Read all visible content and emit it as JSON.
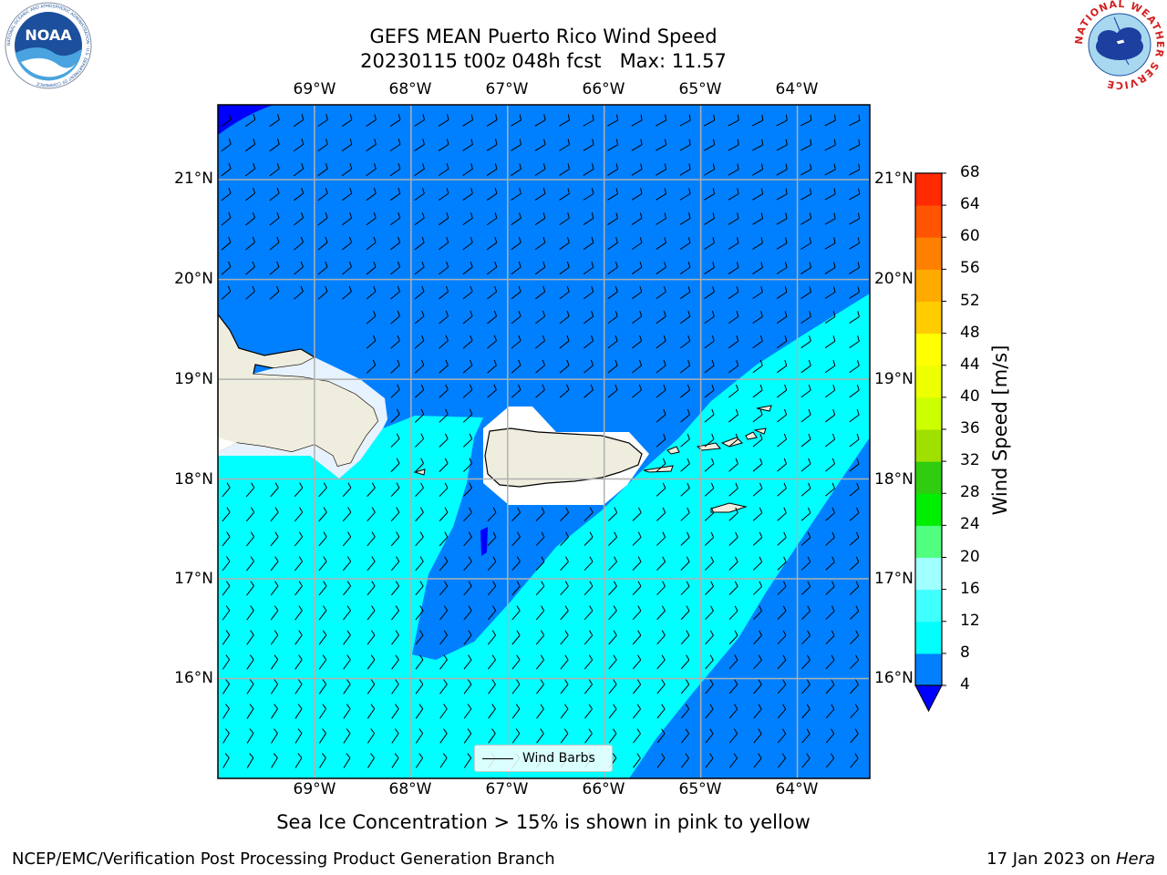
{
  "title_line1": "GEFS MEAN Puerto Rico Wind Speed",
  "title_line2": "20230115 t00z 048h fcst   Max: 11.57",
  "subtitle": "Sea Ice Concentration > 15% is shown in pink to yellow",
  "footer_left": "NCEP/EMC/Verification Post Processing Product Generation Branch",
  "footer_right_text": "17 Jan 2023 on ",
  "footer_right_host": "Hera",
  "noaa_logo_text": "NOAA",
  "noaa_ring_text": "NATIONAL OCEANIC AND ATMOSPHERIC ADMINISTRATION · U.S. DEPARTMENT OF COMMERCE",
  "nws_ring_text": "NATIONAL WEATHER SERVICE",
  "legend_label": "Wind Barbs",
  "map": {
    "lon_labels": [
      "69°W",
      "68°W",
      "67°W",
      "66°W",
      "65°W",
      "64°W"
    ],
    "lat_labels": [
      "21°N",
      "20°N",
      "19°N",
      "18°N",
      "17°N",
      "16°N"
    ],
    "extent": {
      "lon_min": -70.0,
      "lon_max": -63.25,
      "lat_min": 15.0,
      "lat_max": 21.75
    }
  },
  "colorbar": {
    "title": "Wind Speed [m/s]",
    "levels": [
      "4",
      "8",
      "12",
      "16",
      "20",
      "24",
      "28",
      "32",
      "36",
      "40",
      "44",
      "48",
      "52",
      "56",
      "60",
      "64",
      "68"
    ],
    "colors": [
      "#0080ff",
      "#00ffff",
      "#40ffff",
      "#a0ffff",
      "#50ff80",
      "#00ee00",
      "#30cc10",
      "#a0e000",
      "#ccff00",
      "#eeff00",
      "#ffff00",
      "#ffcc00",
      "#ffaa00",
      "#ff8000",
      "#ff5500",
      "#ff2a00"
    ],
    "under_color": "#0000ff"
  },
  "colors": {
    "ocean_low": "#0080ff",
    "ocean_mid": "#00ffff",
    "ocean_min": "#0000ff",
    "land": "#efedde",
    "grid": "#b0b0b0"
  }
}
